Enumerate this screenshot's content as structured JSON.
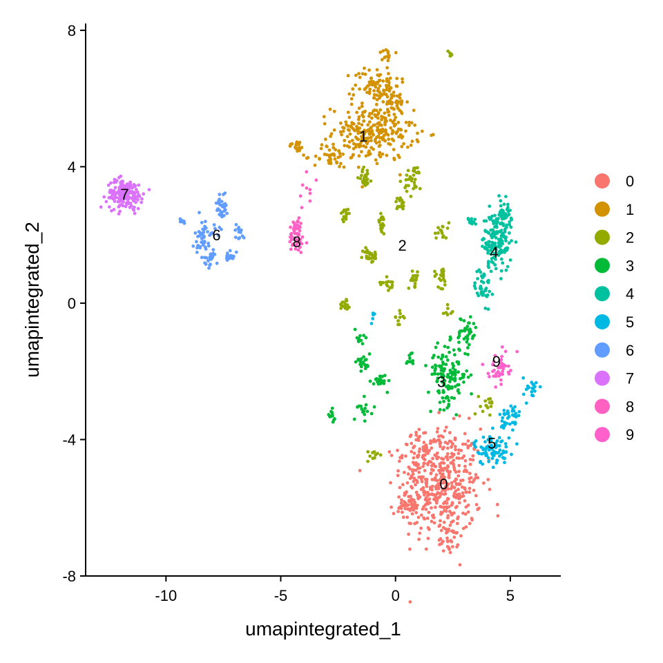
{
  "chart_data": {
    "type": "scatter",
    "xlabel": "umapintegrated_1",
    "ylabel": "umapintegrated_2",
    "xlim": [
      -13.5,
      7.2
    ],
    "ylim": [
      -8,
      8.2
    ],
    "xticks": [
      -10,
      -5,
      0,
      5
    ],
    "yticks": [
      -8,
      -4,
      0,
      4,
      8
    ],
    "legend_position": "right",
    "series": [
      {
        "name": "0",
        "color": "#F8766D",
        "label_at": [
          2.1,
          -5.3
        ],
        "blobs": [
          [
            2.0,
            -5.3,
            1.6,
            1.5,
            420
          ],
          [
            1.2,
            -4.4,
            0.8,
            0.6,
            60
          ],
          [
            0.6,
            -6.0,
            0.6,
            0.3,
            40
          ],
          [
            2.3,
            -6.9,
            0.4,
            0.4,
            30
          ]
        ]
      },
      {
        "name": "1",
        "color": "#D39200",
        "label_at": [
          -1.4,
          4.9
        ],
        "blobs": [
          [
            -1.0,
            5.0,
            1.6,
            0.75,
            260
          ],
          [
            -0.8,
            6.4,
            0.9,
            0.5,
            90
          ],
          [
            0.1,
            5.9,
            0.4,
            0.3,
            25
          ],
          [
            -4.3,
            4.6,
            0.3,
            0.15,
            20
          ],
          [
            -2.8,
            4.3,
            0.7,
            0.3,
            40
          ],
          [
            -0.4,
            7.2,
            0.2,
            0.25,
            12
          ]
        ]
      },
      {
        "name": "2",
        "color": "#93AA00",
        "label_at": [
          0.3,
          1.7
        ],
        "blobs": [
          [
            -1.1,
            1.4,
            0.3,
            0.2,
            30
          ],
          [
            -0.6,
            2.3,
            0.15,
            0.3,
            25
          ],
          [
            -1.3,
            3.7,
            0.25,
            0.25,
            25
          ],
          [
            0.2,
            2.9,
            0.2,
            0.2,
            20
          ],
          [
            0.8,
            3.6,
            0.4,
            0.4,
            30
          ],
          [
            -2.2,
            2.6,
            0.2,
            0.2,
            15
          ],
          [
            -2.2,
            0.0,
            0.2,
            0.2,
            15
          ],
          [
            -0.3,
            0.6,
            0.3,
            0.2,
            15
          ],
          [
            0.8,
            0.7,
            0.2,
            0.2,
            20
          ],
          [
            2.0,
            0.8,
            0.3,
            0.3,
            20
          ],
          [
            2.0,
            2.1,
            0.3,
            0.3,
            15
          ],
          [
            0.2,
            -0.4,
            0.2,
            0.2,
            10
          ],
          [
            -1.0,
            -4.5,
            0.2,
            0.2,
            10
          ],
          [
            2.4,
            7.3,
            0.1,
            0.1,
            6
          ],
          [
            4.0,
            -2.9,
            0.3,
            0.3,
            15
          ],
          [
            2.3,
            -0.3,
            0.2,
            0.2,
            8
          ]
        ]
      },
      {
        "name": "3",
        "color": "#00BA38",
        "label_at": [
          2.0,
          -2.3
        ],
        "blobs": [
          [
            2.3,
            -2.1,
            0.8,
            0.8,
            130
          ],
          [
            3.1,
            -0.9,
            0.4,
            0.5,
            40
          ],
          [
            -1.4,
            -1.7,
            0.3,
            0.3,
            20
          ],
          [
            -0.7,
            -2.3,
            0.3,
            0.2,
            20
          ],
          [
            -2.8,
            -3.3,
            0.15,
            0.15,
            12
          ],
          [
            -1.3,
            -3.1,
            0.3,
            0.3,
            15
          ],
          [
            0.7,
            -1.6,
            0.2,
            0.2,
            10
          ],
          [
            -1.6,
            -1.0,
            0.2,
            0.3,
            10
          ]
        ]
      },
      {
        "name": "4",
        "color": "#00C19F",
        "label_at": [
          4.3,
          1.5
        ],
        "blobs": [
          [
            4.4,
            1.8,
            0.6,
            0.8,
            150
          ],
          [
            4.7,
            2.6,
            0.3,
            0.4,
            40
          ],
          [
            3.8,
            0.5,
            0.3,
            0.5,
            40
          ],
          [
            3.3,
            2.4,
            0.2,
            0.1,
            10
          ]
        ]
      },
      {
        "name": "5",
        "color": "#00B9E3",
        "label_at": [
          4.2,
          -4.1
        ],
        "blobs": [
          [
            4.2,
            -4.3,
            0.7,
            0.4,
            80
          ],
          [
            5.0,
            -3.4,
            0.4,
            0.5,
            40
          ],
          [
            5.9,
            -2.5,
            0.3,
            0.3,
            20
          ],
          [
            -1.0,
            -0.4,
            0.1,
            0.2,
            6
          ]
        ]
      },
      {
        "name": "6",
        "color": "#619CFF",
        "label_at": [
          -7.8,
          2.0
        ],
        "blobs": [
          [
            -8.3,
            1.9,
            0.4,
            0.5,
            50
          ],
          [
            -7.6,
            2.8,
            0.2,
            0.4,
            30
          ],
          [
            -8.0,
            1.3,
            0.3,
            0.2,
            20
          ],
          [
            -7.2,
            1.4,
            0.2,
            0.15,
            15
          ],
          [
            -6.8,
            2.1,
            0.2,
            0.2,
            15
          ],
          [
            -9.3,
            2.4,
            0.2,
            0.1,
            6
          ]
        ]
      },
      {
        "name": "7",
        "color": "#DB72FB",
        "label_at": [
          -11.8,
          3.2
        ],
        "blobs": [
          [
            -11.8,
            3.2,
            0.7,
            0.4,
            180
          ]
        ]
      },
      {
        "name": "8",
        "color": "#FF61C3",
        "label_at": [
          -4.3,
          1.8
        ],
        "blobs": [
          [
            -4.3,
            2.0,
            0.3,
            0.5,
            60
          ],
          [
            -3.8,
            3.5,
            0.3,
            0.4,
            8
          ]
        ]
      },
      {
        "name": "9",
        "color": "#FF61CC",
        "label_at": [
          4.4,
          -1.7
        ],
        "blobs": [
          [
            4.5,
            -1.9,
            0.4,
            0.4,
            40
          ]
        ]
      }
    ]
  }
}
